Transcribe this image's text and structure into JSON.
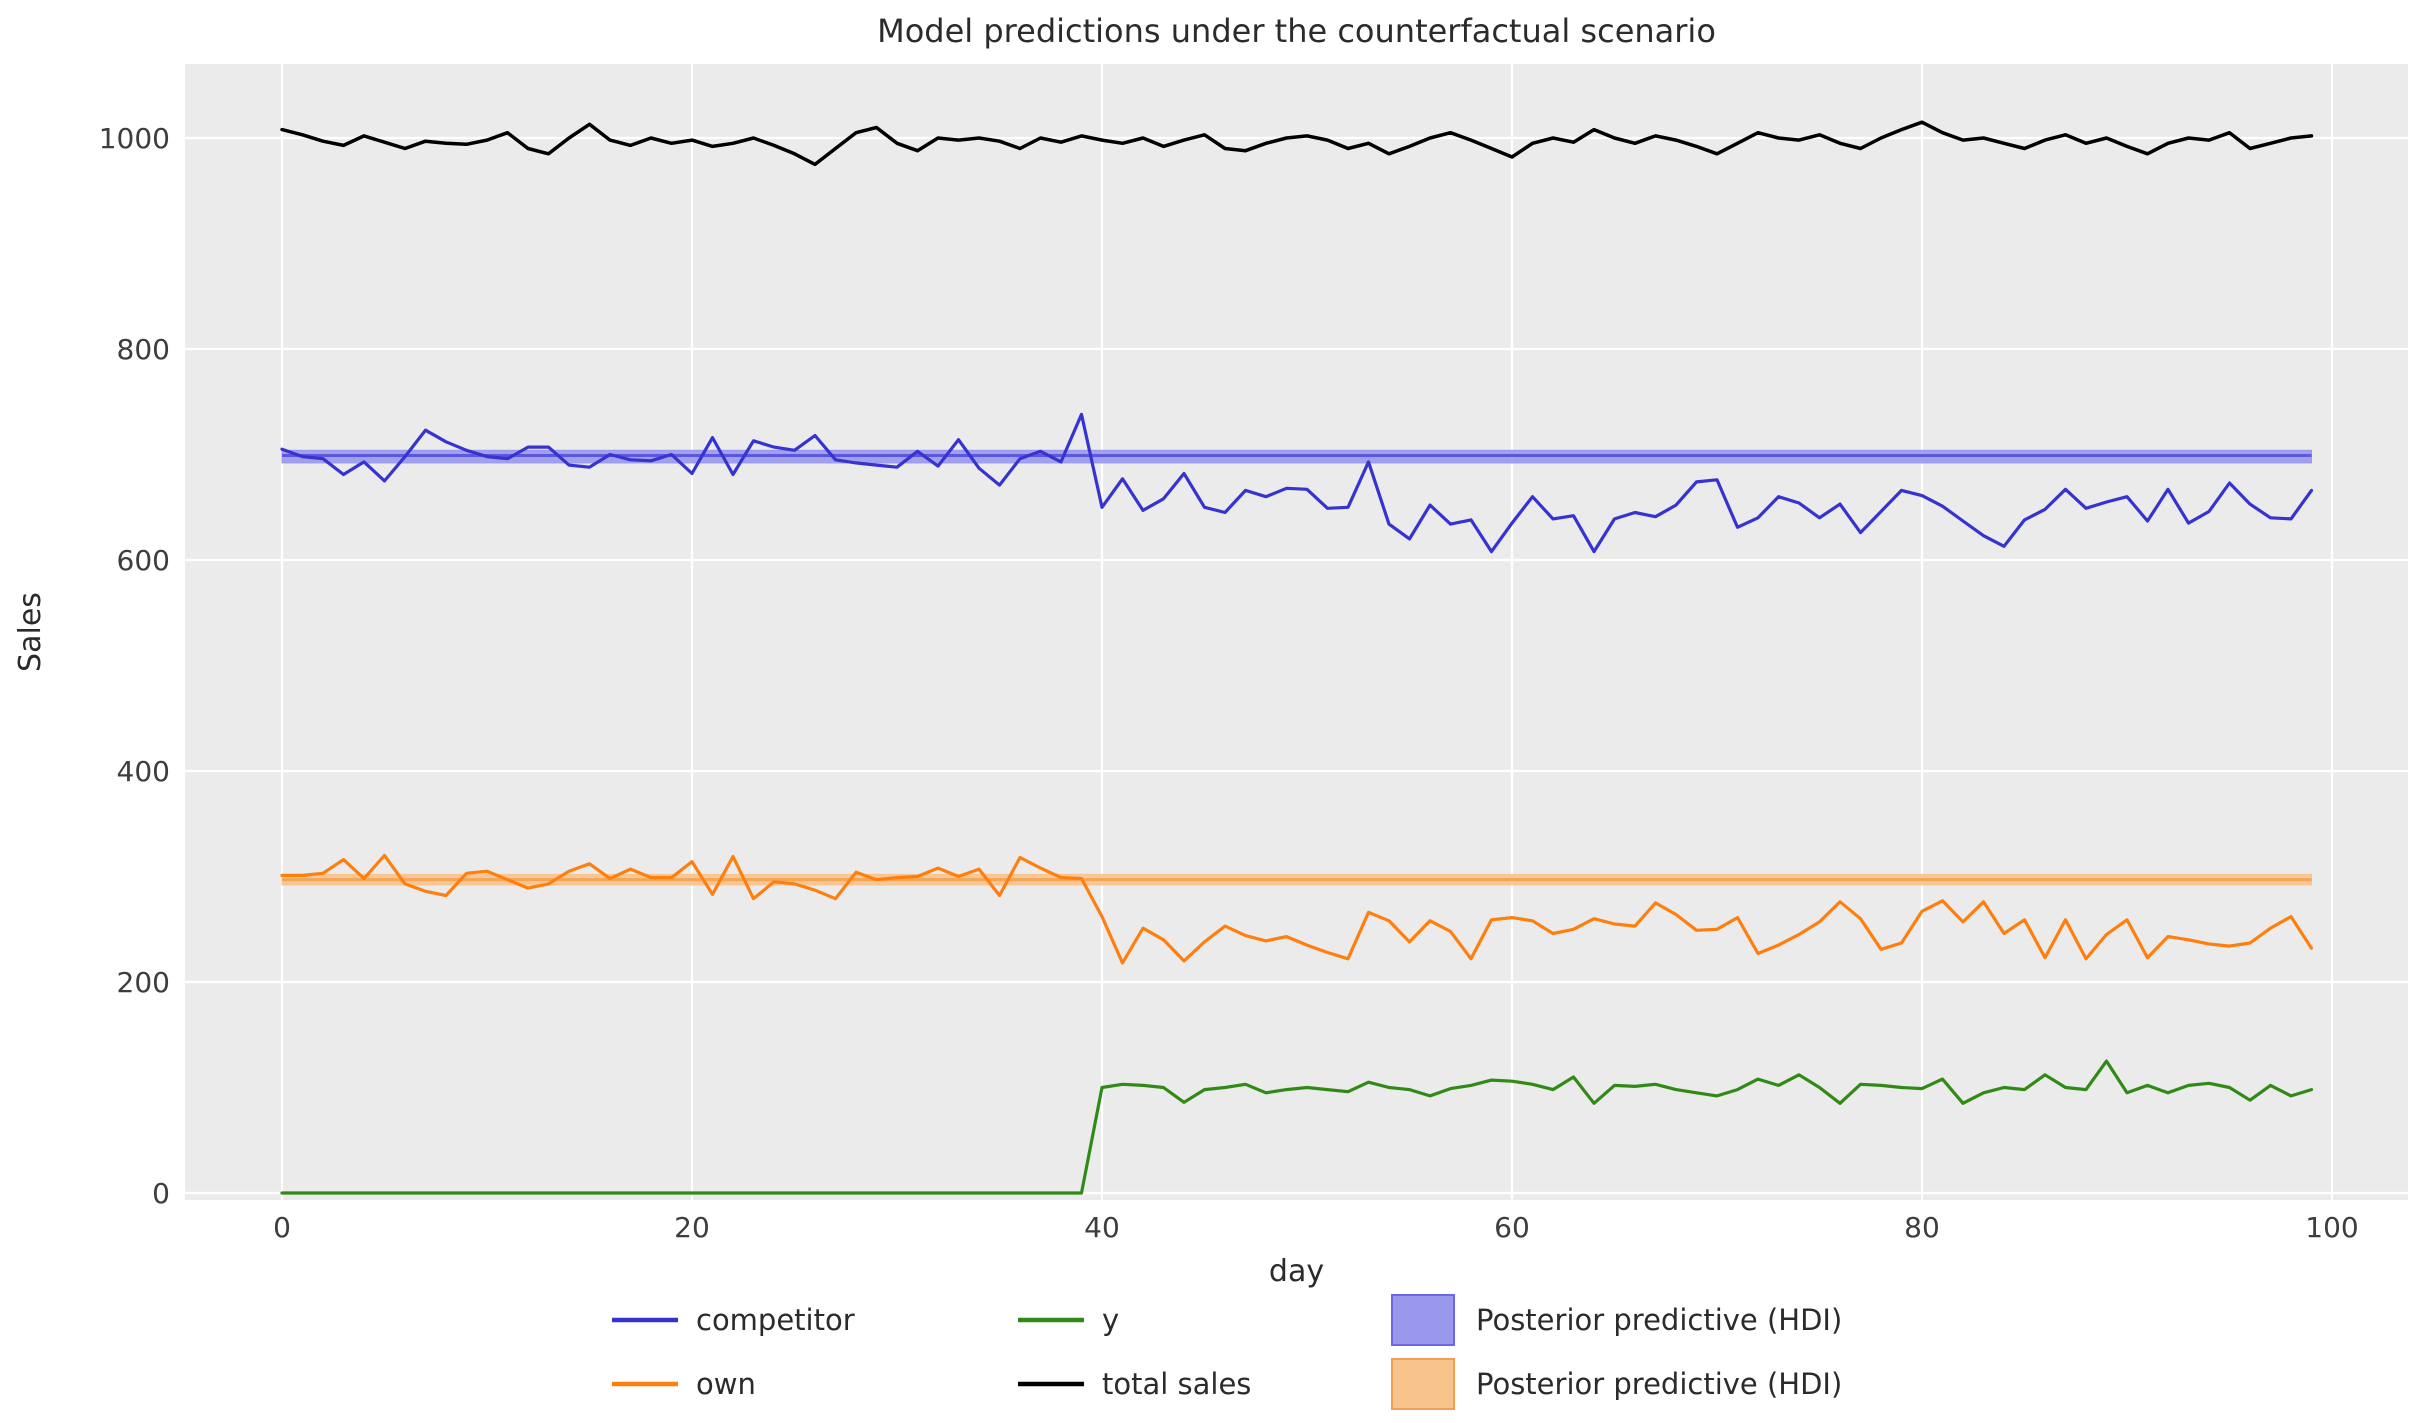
{
  "title": "Model predictions under the counterfactual scenario",
  "colors": {
    "plot_background": "#ebebeb",
    "grid": "#ffffff",
    "text": "#3d3d3d",
    "title_text": "#2b2b2b",
    "competitor": "#3633d0",
    "own": "#ff7f0e",
    "y_series": "#318a16",
    "total_sales": "#000000",
    "hdi_blue_fill": "#9a98ec",
    "hdi_blue_line": "#5c58de",
    "hdi_orange_fill": "#f9c38e",
    "hdi_orange_line": "#f5a557"
  },
  "chart_data": {
    "type": "line",
    "title": "Model predictions under the counterfactual scenario",
    "xlabel": "day",
    "ylabel": "Sales",
    "xlim": [
      -4.7,
      103.7
    ],
    "ylim": [
      -7,
      1070
    ],
    "x_ticks": [
      0,
      20,
      40,
      60,
      80,
      100
    ],
    "y_ticks": [
      0,
      200,
      400,
      600,
      800,
      1000
    ],
    "grid": true,
    "legend_position": "bottom",
    "x": [
      0,
      1,
      2,
      3,
      4,
      5,
      6,
      7,
      8,
      9,
      10,
      11,
      12,
      13,
      14,
      15,
      16,
      17,
      18,
      19,
      20,
      21,
      22,
      23,
      24,
      25,
      26,
      27,
      28,
      29,
      30,
      31,
      32,
      33,
      34,
      35,
      36,
      37,
      38,
      39,
      40,
      41,
      42,
      43,
      44,
      45,
      46,
      47,
      48,
      49,
      50,
      51,
      52,
      53,
      54,
      55,
      56,
      57,
      58,
      59,
      60,
      61,
      62,
      63,
      64,
      65,
      66,
      67,
      68,
      69,
      70,
      71,
      72,
      73,
      74,
      75,
      76,
      77,
      78,
      79,
      80,
      81,
      82,
      83,
      84,
      85,
      86,
      87,
      88,
      89,
      90,
      91,
      92,
      93,
      94,
      95,
      96,
      97,
      98,
      99
    ],
    "series": [
      {
        "name": "competitor",
        "color": "#3633d0",
        "width": 3.2,
        "values": [
          705,
          698,
          696,
          681,
          693,
          675,
          698,
          723,
          712,
          704,
          698,
          696,
          707,
          707,
          690,
          688,
          700,
          695,
          694,
          700,
          682,
          716,
          681,
          713,
          707,
          704,
          718,
          695,
          692,
          690,
          688,
          703,
          689,
          714,
          687,
          671,
          696,
          703,
          693,
          738,
          650,
          677,
          647,
          658,
          682,
          650,
          645,
          666,
          660,
          668,
          667,
          649,
          650,
          693,
          634,
          620,
          652,
          634,
          638,
          608,
          635,
          660,
          639,
          642,
          608,
          639,
          645,
          641,
          652,
          674,
          676,
          631,
          640,
          660,
          654,
          640,
          653,
          626,
          646,
          666,
          661,
          651,
          637,
          623,
          613,
          638,
          648,
          667,
          649,
          655,
          660,
          637,
          667,
          635,
          646,
          673,
          653,
          640,
          639,
          666
        ]
      },
      {
        "name": "own",
        "color": "#ff7f0e",
        "width": 3.2,
        "values": [
          301,
          301,
          303,
          316,
          298,
          320,
          293,
          286,
          282,
          303,
          305,
          297,
          289,
          293,
          305,
          312,
          298,
          307,
          299,
          299,
          314,
          283,
          319,
          279,
          295,
          293,
          287,
          279,
          304,
          297,
          299,
          300,
          308,
          300,
          307,
          282,
          318,
          308,
          299,
          298,
          262,
          218,
          251,
          240,
          220,
          238,
          253,
          244,
          239,
          243,
          235,
          228,
          222,
          266,
          258,
          238,
          258,
          248,
          222,
          259,
          261,
          258,
          246,
          250,
          260,
          255,
          253,
          275,
          264,
          249,
          250,
          261,
          227,
          235,
          245,
          257,
          276,
          260,
          231,
          237,
          267,
          277,
          257,
          276,
          246,
          259,
          223,
          259,
          222,
          245,
          259,
          223,
          243,
          240,
          236,
          234,
          237,
          251,
          262,
          232
        ]
      },
      {
        "name": "y",
        "color": "#318a16",
        "width": 3.2,
        "values": [
          0,
          0,
          0,
          0,
          0,
          0,
          0,
          0,
          0,
          0,
          0,
          0,
          0,
          0,
          0,
          0,
          0,
          0,
          0,
          0,
          0,
          0,
          0,
          0,
          0,
          0,
          0,
          0,
          0,
          0,
          0,
          0,
          0,
          0,
          0,
          0,
          0,
          0,
          0,
          0,
          100,
          103,
          102,
          100,
          86,
          98,
          100,
          103,
          95,
          98,
          100,
          98,
          96,
          105,
          100,
          98,
          92,
          99,
          102,
          107,
          106,
          103,
          98,
          110,
          85,
          102,
          101,
          103,
          98,
          95,
          92,
          98,
          108,
          102,
          112,
          100,
          85,
          103,
          102,
          100,
          99,
          108,
          85,
          95,
          100,
          98,
          112,
          100,
          98,
          125,
          95,
          102,
          95,
          102,
          104,
          100,
          88,
          102,
          92,
          98
        ]
      },
      {
        "name": "total sales",
        "color": "#000000",
        "width": 3.5,
        "values": [
          1008,
          1003,
          997,
          993,
          1002,
          996,
          990,
          997,
          995,
          994,
          998,
          1005,
          990,
          985,
          1000,
          1013,
          998,
          993,
          1000,
          995,
          998,
          992,
          995,
          1000,
          993,
          985,
          975,
          990,
          1005,
          1010,
          995,
          988,
          1000,
          998,
          1000,
          997,
          990,
          1000,
          996,
          1002,
          998,
          995,
          1000,
          992,
          998,
          1003,
          990,
          988,
          995,
          1000,
          1002,
          998,
          990,
          995,
          985,
          992,
          1000,
          1005,
          998,
          990,
          982,
          995,
          1000,
          996,
          1008,
          1000,
          995,
          1002,
          998,
          992,
          985,
          995,
          1005,
          1000,
          998,
          1003,
          995,
          990,
          1000,
          1008,
          1015,
          1005,
          998,
          1000,
          995,
          990,
          998,
          1003,
          995,
          1000,
          992,
          985,
          995,
          1000,
          998,
          1005,
          990,
          995,
          1000,
          1002
        ]
      }
    ],
    "bands": [
      {
        "name": "Posterior predictive (HDI)",
        "fill": "#9a98ec",
        "line_color": "#5c58de",
        "lo": 692,
        "hi": 704,
        "mid": 699,
        "x_start": 0,
        "x_end": 99
      },
      {
        "name": "Posterior predictive (HDI)",
        "fill": "#f9c38e",
        "line_color": "#f5a557",
        "lo": 292,
        "hi": 302,
        "mid": 297,
        "x_start": 0,
        "x_end": 99
      }
    ],
    "legend": {
      "rows": [
        [
          {
            "type": "line",
            "color": "#3633d0",
            "label": "competitor"
          },
          {
            "type": "line",
            "color": "#318a16",
            "label": "y"
          },
          {
            "type": "patch",
            "fill": "#9a98ec",
            "edge": "#6b68e2",
            "label": "Posterior predictive (HDI)"
          }
        ],
        [
          {
            "type": "line",
            "color": "#ff7f0e",
            "label": "own"
          },
          {
            "type": "line",
            "color": "#000000",
            "label": "total sales"
          },
          {
            "type": "patch",
            "fill": "#f9c38e",
            "edge": "#f0a050",
            "label": "Posterior predictive (HDI)"
          }
        ]
      ]
    }
  }
}
